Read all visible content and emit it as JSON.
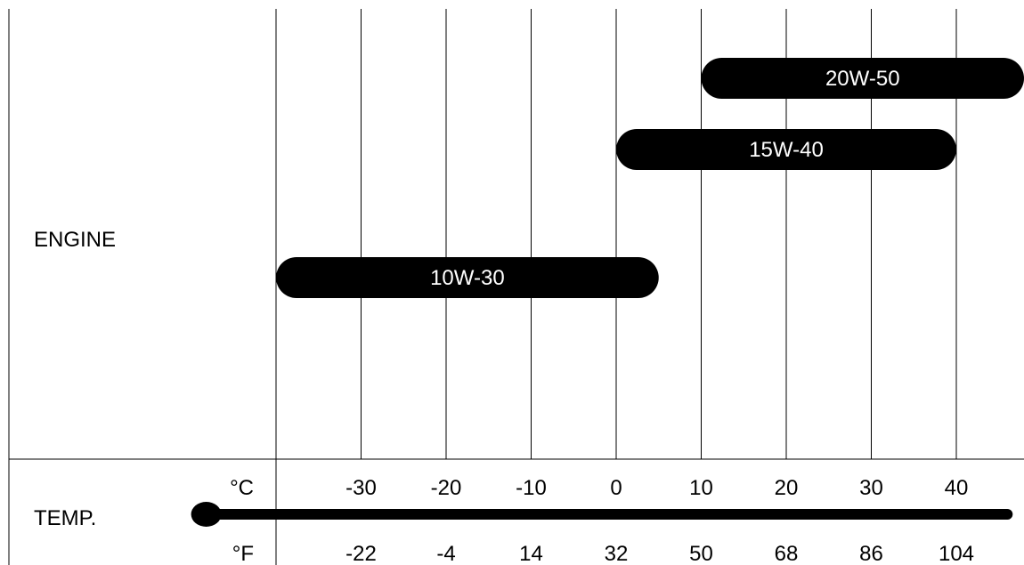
{
  "row_labels": {
    "engine": "ENGINE",
    "temp": "TEMP."
  },
  "units": {
    "celsius": "°C",
    "fahrenheit": "°F"
  },
  "colors": {
    "bar": "#000000",
    "bar_text": "#ffffff",
    "grid": "#000000",
    "background": "#ffffff"
  },
  "chart_data": {
    "type": "bar",
    "orientation": "horizontal-range",
    "x_unit": "°C",
    "xlim": [
      -40,
      50
    ],
    "grid": true,
    "celsius_ticks": [
      "-30",
      "-20",
      "-10",
      "0",
      "10",
      "20",
      "30",
      "40"
    ],
    "fahrenheit_ticks": [
      "-22",
      "-4",
      "14",
      "32",
      "50",
      "68",
      "86",
      "104"
    ],
    "ranges": [
      {
        "name": "20W-50",
        "min": 10,
        "max": 50
      },
      {
        "name": "15W-40",
        "min": 0,
        "max": 40
      },
      {
        "name": "10W-30",
        "min": -40,
        "max": 5
      }
    ],
    "temperature_bar": {
      "min": -48,
      "max": 46
    }
  }
}
